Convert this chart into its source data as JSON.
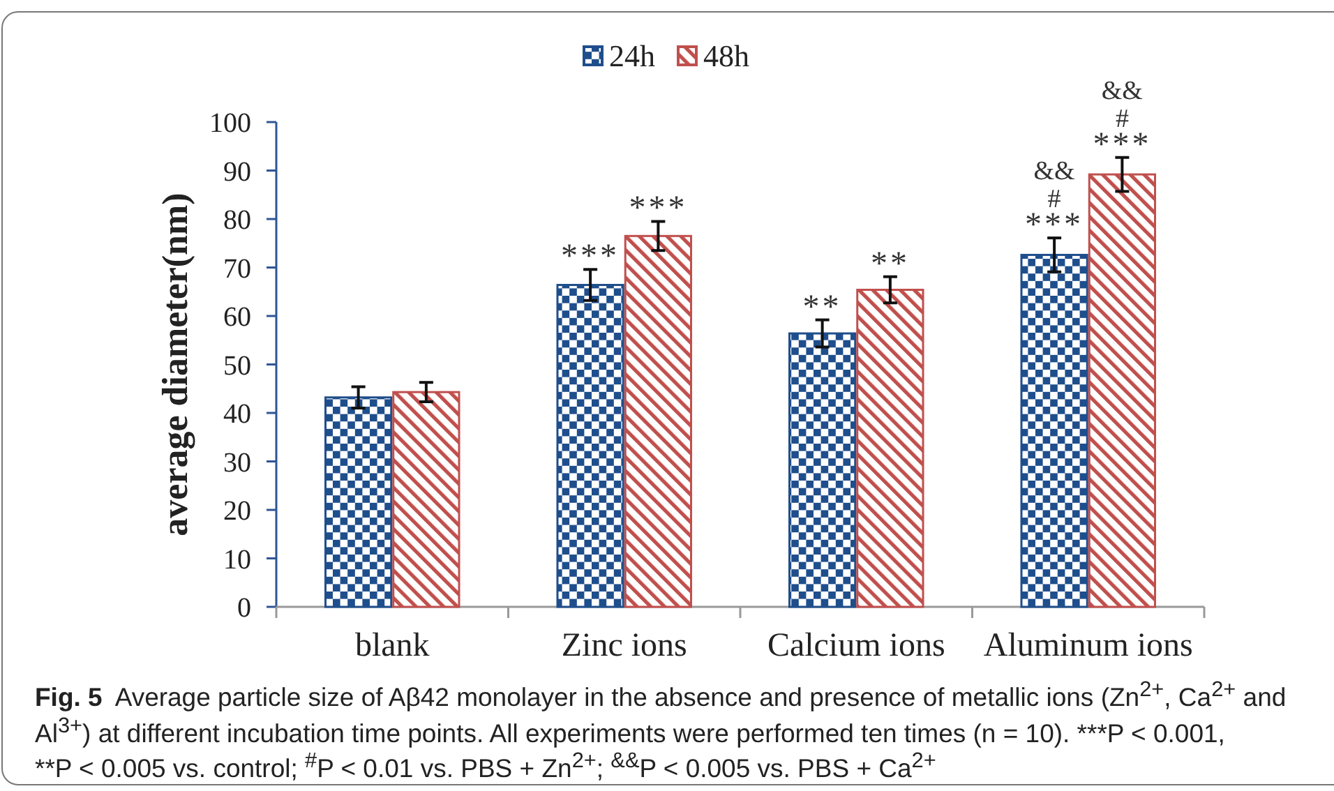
{
  "chart_data": {
    "type": "bar",
    "categories": [
      "blank",
      "Zinc ions",
      "Calcium ions",
      "Aluminum ions"
    ],
    "series": [
      {
        "name": "24h",
        "color": "#1f4e8c",
        "values": [
          43.2,
          66.4,
          56.4,
          72.6
        ],
        "errors": [
          2.2,
          3.2,
          2.8,
          3.5
        ],
        "value_labels": [
          null,
          "***",
          "**",
          "&&\n#\n***"
        ]
      },
      {
        "name": "48h",
        "color": "#c0504d",
        "values": [
          44.3,
          76.5,
          65.4,
          89.2
        ],
        "errors": [
          2,
          3,
          2.7,
          3.5
        ],
        "value_labels": [
          null,
          "***",
          "**",
          "&&\n#\n***"
        ]
      }
    ],
    "ylabel": "average diameter(nm)",
    "ylim": [
      0,
      100
    ],
    "yticks": [
      0,
      10,
      20,
      30,
      40,
      50,
      60,
      70,
      80,
      90,
      100
    ],
    "legend": "top",
    "annotations": [
      "Fig. 5",
      "Average particle size of Aβ42 monolayer in the absence and presence of metallic ions (Zn$^{2+}$, Ca$^{2+}$ and",
      "Al$^{3+}$) at different incubation time points. All experiments were performed ten times (n = 10). ***P < 0.001,",
      "**P < 0.005 vs. control; $^{#}$P < 0.01 vs. PBS + Zn$^{2+}$; $^{&&}$P < 0.005 vs. PBS + Ca$^{2+}$"
    ]
  }
}
